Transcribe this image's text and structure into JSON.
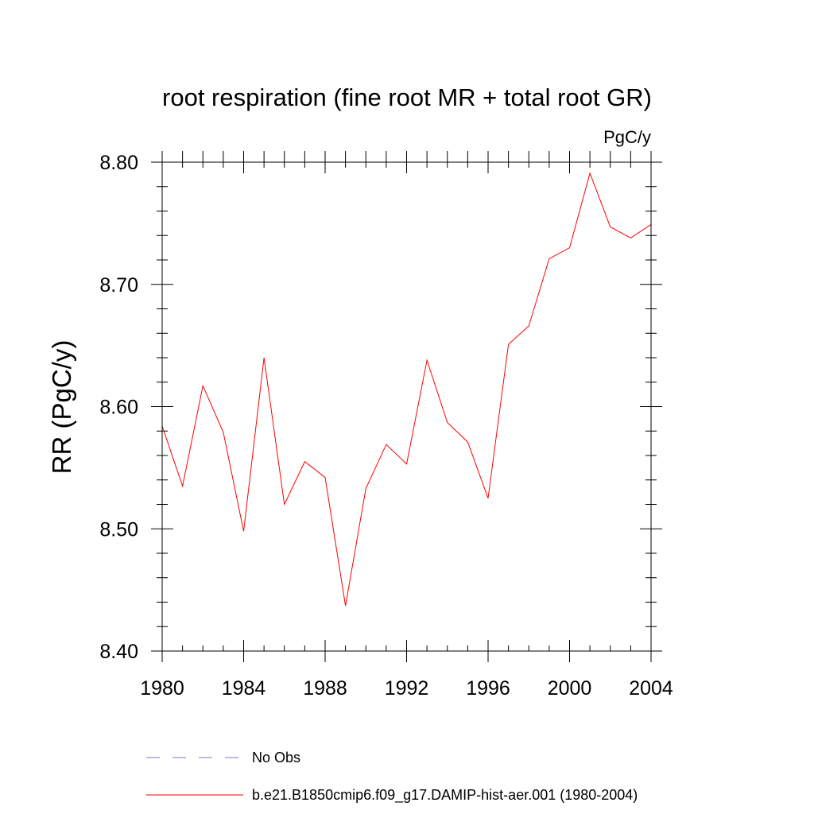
{
  "chart_data": {
    "type": "line",
    "title": "root respiration (fine root MR + total root GR)",
    "units": "PgC/y",
    "ylabel": "RR  (PgC/y)",
    "xlabel": "",
    "xlim": [
      1980,
      2004
    ],
    "ylim": [
      8.4,
      8.8
    ],
    "x_ticks": [
      1980,
      1984,
      1988,
      1992,
      1996,
      2000,
      2004
    ],
    "x_tick_labels": [
      "1980",
      "1984",
      "1988",
      "1992",
      "1996",
      "2000",
      "2004"
    ],
    "y_ticks": [
      8.4,
      8.5,
      8.6,
      8.7,
      8.8
    ],
    "y_tick_labels": [
      "8.40",
      "8.50",
      "8.60",
      "8.70",
      "8.80"
    ],
    "grid": false,
    "legend_position": "bottom",
    "series": [
      {
        "name": "b.e21.B1850cmip6.f09_g17.DAMIP-hist-aer.001 (1980-2004)",
        "color": "#ff0000",
        "style": "solid",
        "x": [
          1980,
          1981,
          1982,
          1983,
          1984,
          1985,
          1986,
          1987,
          1988,
          1989,
          1990,
          1991,
          1992,
          1993,
          1994,
          1995,
          1996,
          1997,
          1998,
          1999,
          2000,
          2001,
          2002,
          2003,
          2004
        ],
        "y": [
          8.584,
          8.535,
          8.617,
          8.579,
          8.498,
          8.64,
          8.52,
          8.555,
          8.542,
          8.437,
          8.533,
          8.569,
          8.553,
          8.638,
          8.587,
          8.571,
          8.525,
          8.651,
          8.666,
          8.721,
          8.73,
          8.791,
          8.747,
          8.738,
          8.749
        ]
      }
    ],
    "legend": [
      {
        "label": "No Obs",
        "color": "#7777cc",
        "style": "dashed"
      },
      {
        "label": "b.e21.B1850cmip6.f09_g17.DAMIP-hist-aer.001 (1980-2004)",
        "color": "#ff0000",
        "style": "solid"
      }
    ]
  }
}
